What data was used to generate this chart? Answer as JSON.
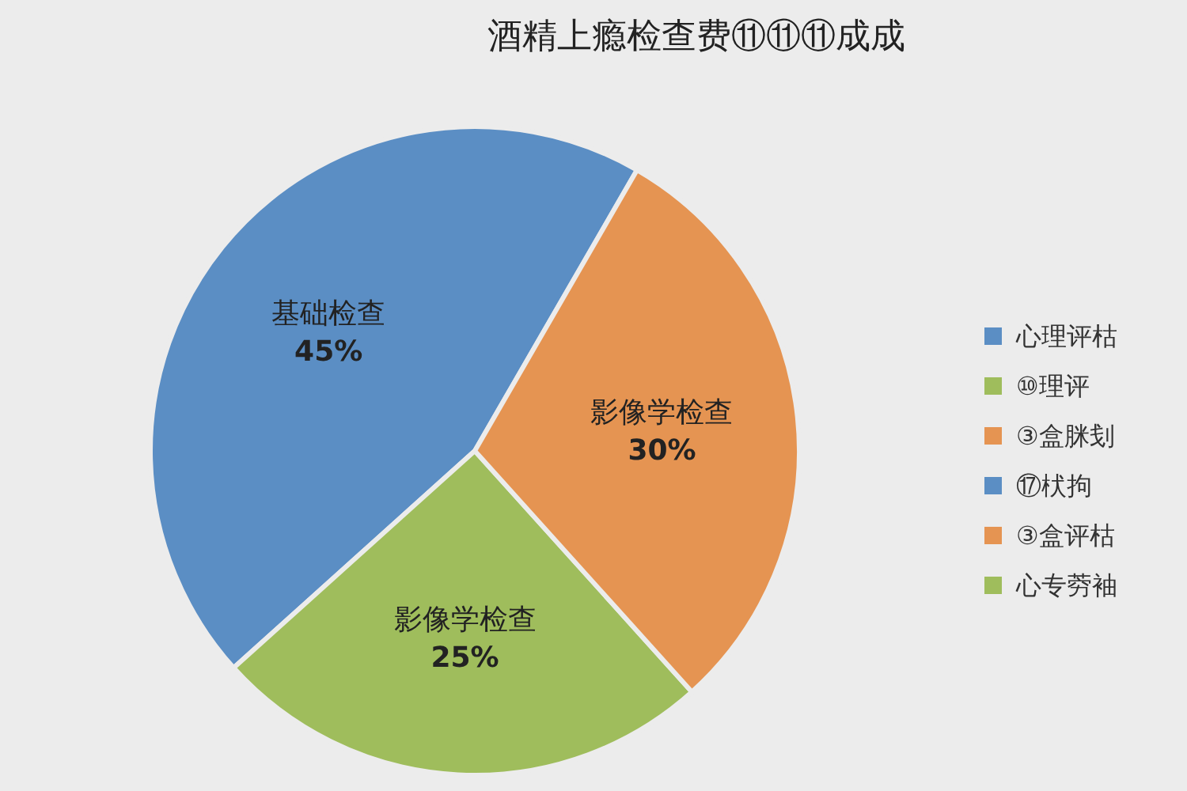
{
  "chart_data": {
    "type": "pie",
    "title": "酒精上瘾检查费⑪⑪⑪成成",
    "categories": [
      "基础检查",
      "影像学检查",
      "影像学检查"
    ],
    "values": [
      45,
      25,
      30
    ],
    "value_labels": [
      "45%",
      "25%",
      "30%"
    ],
    "colors": [
      "#5b8ec4",
      "#9fbd5c",
      "#e59452"
    ],
    "annotations": [
      "心理评枯",
      "⑩理评",
      "③盒脒刬",
      "⑰枤拘",
      "③盒评枯",
      "心专䓖袖"
    ]
  }
}
